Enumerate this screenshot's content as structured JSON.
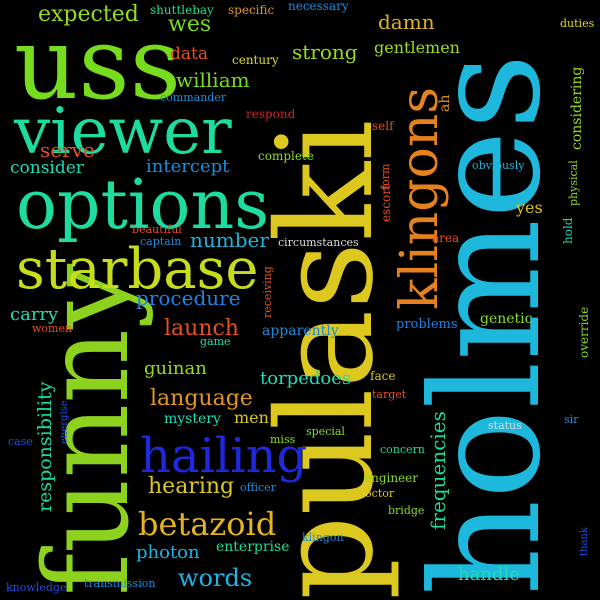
{
  "words": [
    {
      "text": "holmes",
      "color": "#1eb8dc"
    },
    {
      "text": "pulaski",
      "color": "#dcc81e"
    },
    {
      "text": "funny",
      "color": "#8cd21e"
    },
    {
      "text": "uss",
      "color": "#78dc1e"
    },
    {
      "text": "options",
      "color": "#1edca0"
    },
    {
      "text": "viewer",
      "color": "#1edca0"
    },
    {
      "text": "starbase",
      "color": "#c8dc1e"
    },
    {
      "text": "klingons",
      "color": "#e6821e"
    },
    {
      "text": "hailing",
      "color": "#1e28dc"
    },
    {
      "text": "betazoid",
      "color": "#e6b41e"
    },
    {
      "text": "expected",
      "color": "#96dc1e"
    },
    {
      "text": "wes",
      "color": "#78dc1e"
    },
    {
      "text": "strong",
      "color": "#96dc1e"
    },
    {
      "text": "damn",
      "color": "#dcb41e"
    },
    {
      "text": "gentlemen",
      "color": "#a0dc1e"
    },
    {
      "text": "william",
      "color": "#78dc1e"
    },
    {
      "text": "data",
      "color": "#e6501e"
    },
    {
      "text": "serve",
      "color": "#e6501e"
    },
    {
      "text": "consider",
      "color": "#1edcb4"
    },
    {
      "text": "intercept",
      "color": "#1e8cdc"
    },
    {
      "text": "number",
      "color": "#1eb4dc"
    },
    {
      "text": "procedure",
      "color": "#1e82e6"
    },
    {
      "text": "launch",
      "color": "#e6501e"
    },
    {
      "text": "carry",
      "color": "#1edcb4"
    },
    {
      "text": "guinan",
      "color": "#96dc1e"
    },
    {
      "text": "torpedoes",
      "color": "#1edcb4"
    },
    {
      "text": "language",
      "color": "#e6961e"
    },
    {
      "text": "mystery",
      "color": "#1edcb4"
    },
    {
      "text": "men",
      "color": "#dcc81e"
    },
    {
      "text": "hearing",
      "color": "#dcc81e"
    },
    {
      "text": "photon",
      "color": "#1eb4e6"
    },
    {
      "text": "words",
      "color": "#1eb4e6"
    },
    {
      "text": "enterprise",
      "color": "#1edca0"
    },
    {
      "text": "responsibility",
      "color": "#1edca0"
    },
    {
      "text": "frequencies",
      "color": "#1edca0"
    },
    {
      "text": "handle",
      "color": "#1edcb4"
    },
    {
      "text": "shuttlebay",
      "color": "#1edc8c"
    },
    {
      "text": "specific",
      "color": "#e6961e"
    },
    {
      "text": "necessary",
      "color": "#1e8cdc"
    },
    {
      "text": "duties",
      "color": "#dcdc1e"
    },
    {
      "text": "century",
      "color": "#dcdc1e"
    },
    {
      "text": "commander",
      "color": "#1e8cdc"
    },
    {
      "text": "respond",
      "color": "#dc1e1e"
    },
    {
      "text": "self",
      "color": "#e6501e"
    },
    {
      "text": "ah",
      "color": "#e6961e"
    },
    {
      "text": "considering",
      "color": "#96dc1e"
    },
    {
      "text": "complete",
      "color": "#8cdc1e"
    },
    {
      "text": "obviously",
      "color": "#1eb4dc"
    },
    {
      "text": "beautiful",
      "color": "#e6501e"
    },
    {
      "text": "captain",
      "color": "#1e8cdc"
    },
    {
      "text": "circumstances",
      "color": "#dcdcdc"
    },
    {
      "text": "area",
      "color": "#e6501e"
    },
    {
      "text": "yes",
      "color": "#dcc81e"
    },
    {
      "text": "escort",
      "color": "#e6501e"
    },
    {
      "text": "form",
      "color": "#e6501e"
    },
    {
      "text": "physical",
      "color": "#8cdc1e"
    },
    {
      "text": "hold",
      "color": "#1edcb4"
    },
    {
      "text": "women",
      "color": "#e6501e"
    },
    {
      "text": "receiving",
      "color": "#e6501e"
    },
    {
      "text": "game",
      "color": "#1edcb4"
    },
    {
      "text": "apparently",
      "color": "#1e8cdc"
    },
    {
      "text": "problems",
      "color": "#1e82e6"
    },
    {
      "text": "genetic",
      "color": "#8cdc1e"
    },
    {
      "text": "override",
      "color": "#8cdc1e"
    },
    {
      "text": "face",
      "color": "#dcc81e"
    },
    {
      "text": "target",
      "color": "#e6501e"
    },
    {
      "text": "sir",
      "color": "#1e8cdc"
    },
    {
      "text": "case",
      "color": "#1e50e6"
    },
    {
      "text": "energise",
      "color": "#1e50e6"
    },
    {
      "text": "miss",
      "color": "#8cdc1e"
    },
    {
      "text": "special",
      "color": "#8cdc1e"
    },
    {
      "text": "status",
      "color": "#dcdcdc"
    },
    {
      "text": "concern",
      "color": "#1edca0"
    },
    {
      "text": "officer",
      "color": "#1e8cdc"
    },
    {
      "text": "engineer",
      "color": "#8cdc1e"
    },
    {
      "text": "doctor",
      "color": "#dcc81e"
    },
    {
      "text": "bridge",
      "color": "#8cdc1e"
    },
    {
      "text": "klingon",
      "color": "#1e8cdc"
    },
    {
      "text": "thank",
      "color": "#1e50e6"
    },
    {
      "text": "knowledge",
      "color": "#1e50e6"
    },
    {
      "text": "transmission",
      "color": "#1e8cdc"
    }
  ]
}
